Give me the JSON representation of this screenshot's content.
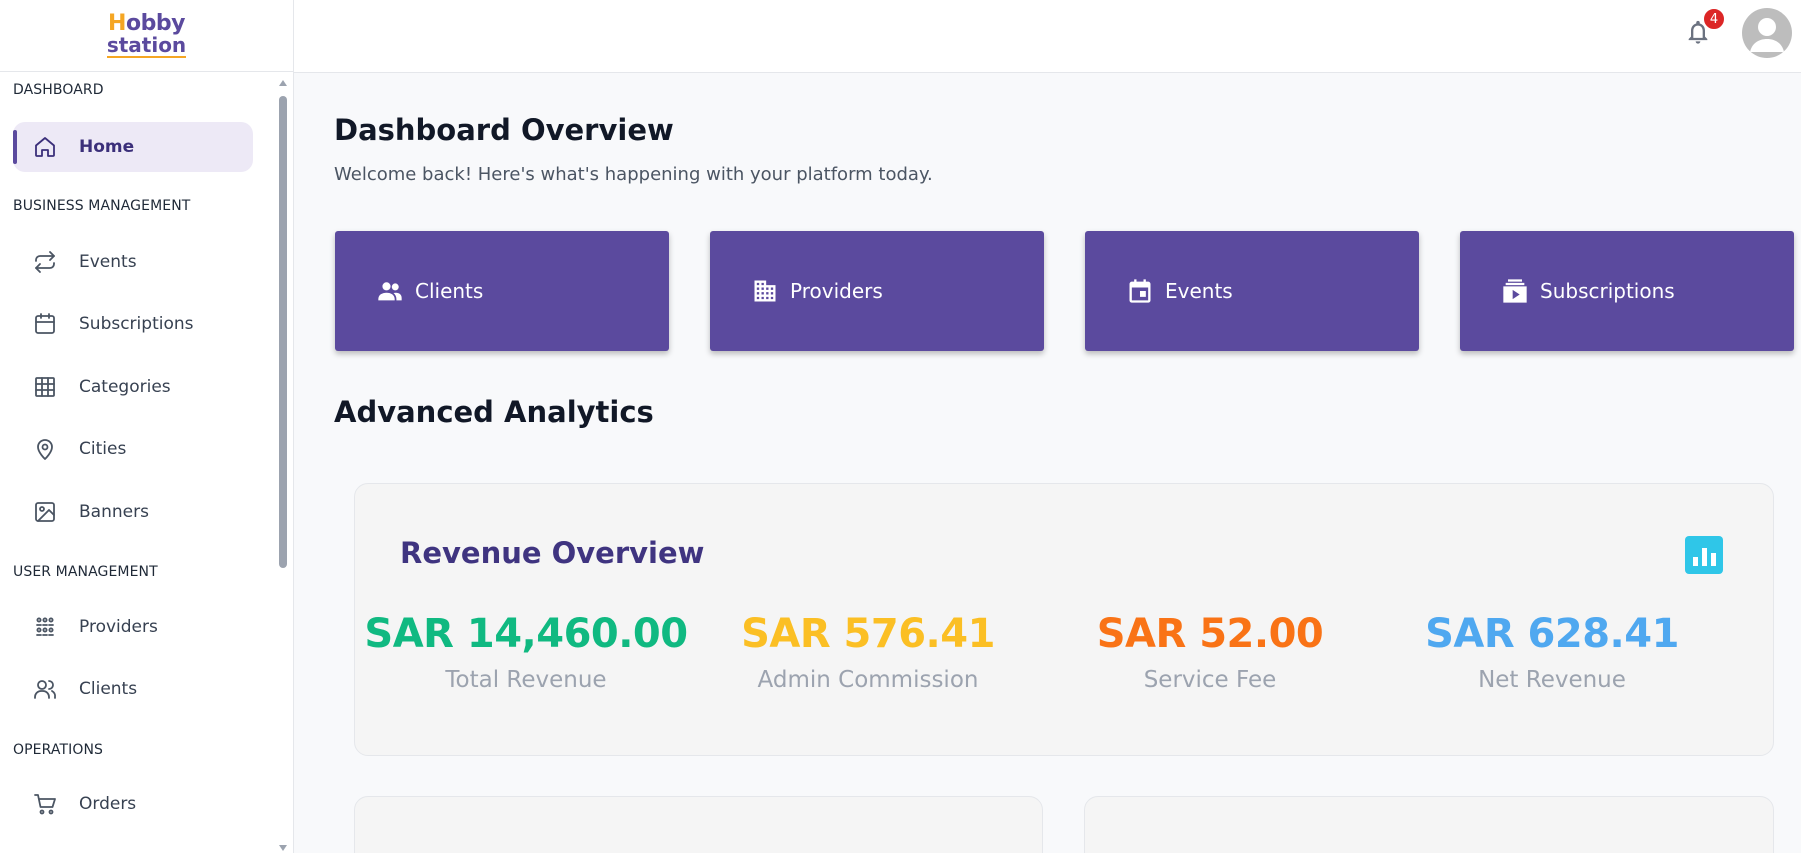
{
  "logo": {
    "line1_prefix": "H",
    "line1_rest": "obby",
    "line2": "station"
  },
  "sidebar": {
    "sections": [
      {
        "title": "DASHBOARD"
      },
      {
        "title": "BUSINESS MANAGEMENT"
      },
      {
        "title": "USER MANAGEMENT"
      },
      {
        "title": "OPERATIONS"
      }
    ],
    "items": [
      {
        "label": "Home",
        "icon": "home-icon"
      },
      {
        "label": "Events",
        "icon": "repeat-icon"
      },
      {
        "label": "Subscriptions",
        "icon": "calendar-icon"
      },
      {
        "label": "Categories",
        "icon": "grid-icon"
      },
      {
        "label": "Cities",
        "icon": "map-pin-icon"
      },
      {
        "label": "Banners",
        "icon": "image-icon"
      },
      {
        "label": "Providers",
        "icon": "group-icon"
      },
      {
        "label": "Clients",
        "icon": "users-icon"
      },
      {
        "label": "Orders",
        "icon": "cart-icon"
      }
    ]
  },
  "header": {
    "notification_count": "4"
  },
  "main": {
    "title": "Dashboard Overview",
    "subtitle": "Welcome back! Here's what's happening with your platform today.",
    "stat_cards": [
      {
        "label": "Clients",
        "icon": "people-icon"
      },
      {
        "label": "Providers",
        "icon": "building-icon"
      },
      {
        "label": "Events",
        "icon": "event-icon"
      },
      {
        "label": "Subscriptions",
        "icon": "subscriptions-icon"
      }
    ],
    "analytics_title": "Advanced Analytics",
    "revenue": {
      "title": "Revenue Overview",
      "metrics": [
        {
          "value": "SAR 14,460.00",
          "label": "Total Revenue",
          "color": "#10b981"
        },
        {
          "value": "SAR 576.41",
          "label": "Admin Commission",
          "color": "#fbbf24"
        },
        {
          "value": "SAR 52.00",
          "label": "Service Fee",
          "color": "#f97316"
        },
        {
          "value": "SAR 628.41",
          "label": "Net Revenue",
          "color": "#4fa8f0"
        }
      ]
    }
  },
  "colors": {
    "primary": "#5b4a9e",
    "accent": "#f5a623"
  }
}
